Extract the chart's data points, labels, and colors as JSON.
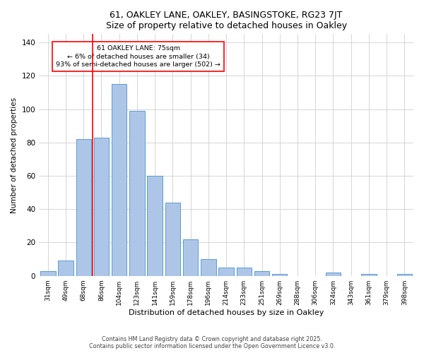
{
  "title": "61, OAKLEY LANE, OAKLEY, BASINGSTOKE, RG23 7JT",
  "subtitle": "Size of property relative to detached houses in Oakley",
  "xlabel": "Distribution of detached houses by size in Oakley",
  "ylabel": "Number of detached properties",
  "bar_labels": [
    "31sqm",
    "49sqm",
    "68sqm",
    "86sqm",
    "104sqm",
    "123sqm",
    "141sqm",
    "159sqm",
    "178sqm",
    "196sqm",
    "214sqm",
    "233sqm",
    "251sqm",
    "269sqm",
    "288sqm",
    "306sqm",
    "324sqm",
    "343sqm",
    "361sqm",
    "379sqm",
    "398sqm"
  ],
  "bar_values": [
    3,
    9,
    82,
    83,
    115,
    99,
    60,
    44,
    22,
    10,
    5,
    5,
    3,
    1,
    0,
    0,
    2,
    0,
    1,
    0,
    1
  ],
  "bar_color": "#adc6e8",
  "bar_edge_color": "#5b9bd5",
  "property_label": "61 OAKLEY LANE: 75sqm",
  "annotation_line1": "← 6% of detached houses are smaller (34)",
  "annotation_line2": "93% of semi-detached houses are larger (502) →",
  "vline_color": "#ff0000",
  "vline_position": 2.5,
  "ylim": [
    0,
    145
  ],
  "yticks": [
    0,
    20,
    40,
    60,
    80,
    100,
    120,
    140
  ],
  "background_color": "#ffffff",
  "footer_line1": "Contains HM Land Registry data © Crown copyright and database right 2025.",
  "footer_line2": "Contains public sector information licensed under the Open Government Licence v3.0."
}
